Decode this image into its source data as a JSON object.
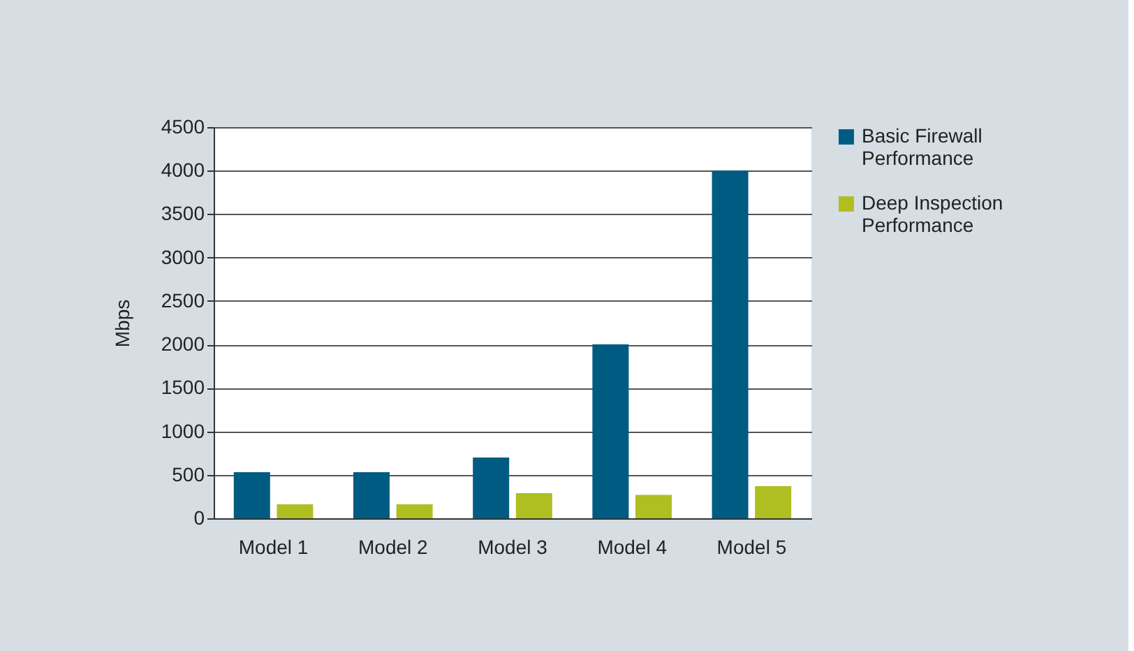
{
  "chart_data": {
    "type": "bar",
    "ylabel": "Mbps",
    "categories": [
      "Model 1",
      "Model 2",
      "Model 3",
      "Model 4",
      "Model 5"
    ],
    "series": [
      {
        "name": "Basic Firewall Performance",
        "color": "#005b82",
        "values": [
          530,
          530,
          700,
          2000,
          4000
        ]
      },
      {
        "name": "Deep Inspection Performance",
        "color": "#afbe21",
        "values": [
          160,
          160,
          290,
          270,
          370
        ]
      }
    ],
    "ylim": [
      0,
      4500
    ],
    "yticks": [
      0,
      500,
      1000,
      1500,
      2000,
      2500,
      3000,
      3500,
      4000,
      4500
    ],
    "grid": "y",
    "legend": "right"
  }
}
